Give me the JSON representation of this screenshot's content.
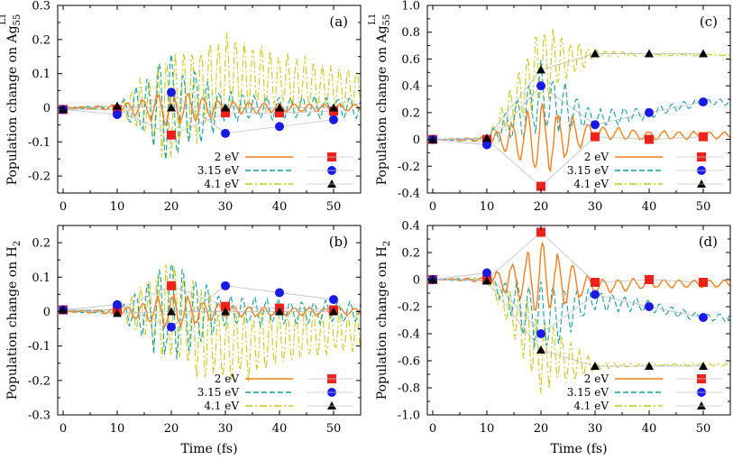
{
  "chart_data": [
    {
      "panel": "(a)",
      "type": "line",
      "ylabel_main": "Population change on Ag",
      "ylabel_sub": "55",
      "ylabel_sup": "L1",
      "xlabel": "",
      "xlim": [
        -1,
        55
      ],
      "ylim": [
        -0.25,
        0.3
      ],
      "xticks": [
        0,
        10,
        20,
        30,
        40,
        50
      ],
      "yticks": [
        -0.2,
        -0.1,
        0,
        0.1,
        0.2,
        0.3
      ],
      "ytick_labels": [
        "-0.2",
        "-0.1",
        "0",
        "0.1",
        "0.2",
        "0.3"
      ],
      "envelope": {
        "2 eV": [
          0,
          0.01,
          0.06,
          0.02,
          0.015,
          0.012
        ],
        "3.15 eV": [
          0,
          0.01,
          0.18,
          0.05,
          0.04,
          0.035
        ],
        "4.1 eV": [
          0,
          0.01,
          0.2,
          0.13,
          0.1,
          0.07
        ]
      },
      "baseline": {
        "2 eV": [
          0,
          0,
          0,
          0,
          0,
          0
        ],
        "3.15 eV": [
          0,
          0,
          0,
          0,
          0,
          0
        ],
        "4.1 eV": [
          0,
          0,
          0,
          0.1,
          0.08,
          0.06
        ]
      },
      "series": [
        {
          "name": "2 eV",
          "color": "#f47f1f",
          "marker": "square",
          "marker_color": "#f0211b",
          "x": [
            0,
            10,
            20,
            30,
            40,
            50
          ],
          "y": [
            -0.005,
            -0.005,
            -0.08,
            -0.015,
            -0.015,
            -0.01
          ]
        },
        {
          "name": "3.15 eV",
          "color": "#169c9d",
          "marker": "circle",
          "marker_color": "#1a1ae6",
          "x": [
            0,
            10,
            20,
            30,
            40,
            50
          ],
          "y": [
            -0.005,
            -0.02,
            0.045,
            -0.075,
            -0.055,
            -0.035
          ]
        },
        {
          "name": "4.1 eV",
          "color": "#c4c91b",
          "marker": "triangle",
          "marker_color": "#000000",
          "x": [
            0,
            10,
            20,
            30,
            40,
            50
          ],
          "y": [
            -0.005,
            0.005,
            0,
            0,
            0,
            0
          ]
        }
      ]
    },
    {
      "panel": "(b)",
      "type": "line",
      "ylabel_main": "Population change on H",
      "ylabel_sub": "2",
      "ylabel_sup": "",
      "xlabel": "Time (fs)",
      "xlim": [
        -1,
        55
      ],
      "ylim": [
        -0.3,
        0.25
      ],
      "xticks": [
        0,
        10,
        20,
        30,
        40,
        50
      ],
      "yticks": [
        -0.3,
        -0.2,
        -0.1,
        0,
        0.1,
        0.2
      ],
      "ytick_labels": [
        "-0.3",
        "-0.2",
        "-0.1",
        "0",
        "0.1",
        "0.2"
      ],
      "envelope": {
        "2 eV": [
          0,
          0.01,
          0.06,
          0.02,
          0.015,
          0.012
        ],
        "3.15 eV": [
          0,
          0.01,
          0.18,
          0.05,
          0.04,
          0.035
        ],
        "4.1 eV": [
          0,
          0.01,
          0.2,
          0.13,
          0.1,
          0.07
        ]
      },
      "baseline": {
        "2 eV": [
          0,
          0,
          0,
          0,
          0,
          0
        ],
        "3.15 eV": [
          0,
          0,
          0,
          0,
          0,
          0
        ],
        "4.1 eV": [
          0,
          0,
          0,
          -0.1,
          -0.08,
          -0.06
        ]
      },
      "series": [
        {
          "name": "2 eV",
          "color": "#f47f1f",
          "marker": "square",
          "marker_color": "#f0211b",
          "x": [
            0,
            10,
            20,
            30,
            40,
            50
          ],
          "y": [
            0.005,
            0.005,
            0.075,
            0.015,
            0.01,
            0.005
          ]
        },
        {
          "name": "3.15 eV",
          "color": "#169c9d",
          "marker": "circle",
          "marker_color": "#1a1ae6",
          "x": [
            0,
            10,
            20,
            30,
            40,
            50
          ],
          "y": [
            0.005,
            0.02,
            -0.045,
            0.075,
            0.055,
            0.035
          ]
        },
        {
          "name": "4.1 eV",
          "color": "#c4c91b",
          "marker": "triangle",
          "marker_color": "#000000",
          "x": [
            0,
            10,
            20,
            30,
            40,
            50
          ],
          "y": [
            0.005,
            -0.005,
            0,
            0,
            0,
            0
          ]
        }
      ]
    },
    {
      "panel": "(c)",
      "type": "line",
      "ylabel_main": "Population change on Ag",
      "ylabel_sub": "55",
      "ylabel_sup": "L1",
      "xlabel": "",
      "xlim": [
        -1,
        55
      ],
      "ylim": [
        -0.4,
        1.0
      ],
      "xticks": [
        0,
        10,
        20,
        30,
        40,
        50
      ],
      "yticks": [
        -0.4,
        -0.2,
        0,
        0.2,
        0.4,
        0.6,
        0.8,
        1.0
      ],
      "ytick_labels": [
        "-0.4",
        "-0.2",
        "0",
        "0.2",
        "0.4",
        "0.6",
        "0.8",
        "1.0"
      ],
      "envelope": {
        "2 eV": [
          0,
          0.02,
          0.3,
          0.06,
          0.04,
          0.03
        ],
        "3.15 eV": [
          0,
          0.02,
          0.3,
          0.08,
          0.05,
          0.03
        ],
        "4.1 eV": [
          0,
          0.02,
          0.35,
          0.03,
          0.01,
          0.01
        ]
      },
      "baseline": {
        "2 eV": [
          0,
          0,
          0,
          0.05,
          0.03,
          0.03
        ],
        "3.15 eV": [
          0,
          0,
          0.3,
          0.15,
          0.2,
          0.28
        ],
        "4.1 eV": [
          0,
          0,
          0.55,
          0.64,
          0.63,
          0.63
        ]
      },
      "series": [
        {
          "name": "2 eV",
          "color": "#f47f1f",
          "marker": "square",
          "marker_color": "#f0211b",
          "x": [
            0,
            10,
            20,
            30,
            40,
            50
          ],
          "y": [
            0,
            0,
            -0.35,
            0.02,
            0,
            0.02
          ]
        },
        {
          "name": "3.15 eV",
          "color": "#169c9d",
          "marker": "circle",
          "marker_color": "#1a1ae6",
          "x": [
            0,
            10,
            20,
            30,
            40,
            50
          ],
          "y": [
            0,
            -0.04,
            0.4,
            0.11,
            0.2,
            0.28
          ]
        },
        {
          "name": "4.1 eV",
          "color": "#c4c91b",
          "marker": "triangle",
          "marker_color": "#000000",
          "x": [
            0,
            10,
            20,
            30,
            40,
            50
          ],
          "y": [
            0,
            0.01,
            0.52,
            0.64,
            0.64,
            0.64
          ]
        }
      ]
    },
    {
      "panel": "(d)",
      "type": "line",
      "ylabel_main": "Population change on H",
      "ylabel_sub": "2",
      "ylabel_sup": "",
      "xlabel": "Time (fs)",
      "xlim": [
        -1,
        55
      ],
      "ylim": [
        -1.0,
        0.4
      ],
      "xticks": [
        0,
        10,
        20,
        30,
        40,
        50
      ],
      "yticks": [
        -1.0,
        -0.8,
        -0.6,
        -0.4,
        -0.2,
        0,
        0.2,
        0.4
      ],
      "ytick_labels": [
        "-1.0",
        "-0.8",
        "-0.6",
        "-0.4",
        "-0.2",
        "0",
        "0.2",
        "0.4"
      ],
      "envelope": {
        "2 eV": [
          0,
          0.02,
          0.3,
          0.06,
          0.04,
          0.03
        ],
        "3.15 eV": [
          0,
          0.02,
          0.3,
          0.08,
          0.05,
          0.03
        ],
        "4.1 eV": [
          0,
          0.02,
          0.35,
          0.03,
          0.01,
          0.01
        ]
      },
      "baseline": {
        "2 eV": [
          0,
          0,
          0,
          -0.05,
          -0.03,
          -0.03
        ],
        "3.15 eV": [
          0,
          0,
          -0.3,
          -0.15,
          -0.2,
          -0.28
        ],
        "4.1 eV": [
          0,
          0,
          -0.55,
          -0.64,
          -0.63,
          -0.63
        ]
      },
      "series": [
        {
          "name": "2 eV",
          "color": "#f47f1f",
          "marker": "square",
          "marker_color": "#f0211b",
          "x": [
            0,
            10,
            20,
            30,
            40,
            50
          ],
          "y": [
            0,
            0,
            0.35,
            -0.02,
            0,
            -0.02
          ]
        },
        {
          "name": "3.15 eV",
          "color": "#169c9d",
          "marker": "circle",
          "marker_color": "#1a1ae6",
          "x": [
            0,
            10,
            20,
            30,
            40,
            50
          ],
          "y": [
            0,
            0.05,
            -0.4,
            -0.11,
            -0.2,
            -0.28
          ]
        },
        {
          "name": "4.1 eV",
          "color": "#c4c91b",
          "marker": "triangle",
          "marker_color": "#000000",
          "x": [
            0,
            10,
            20,
            30,
            40,
            50
          ],
          "y": [
            0,
            -0.01,
            -0.52,
            -0.64,
            -0.64,
            -0.64
          ]
        }
      ]
    }
  ]
}
